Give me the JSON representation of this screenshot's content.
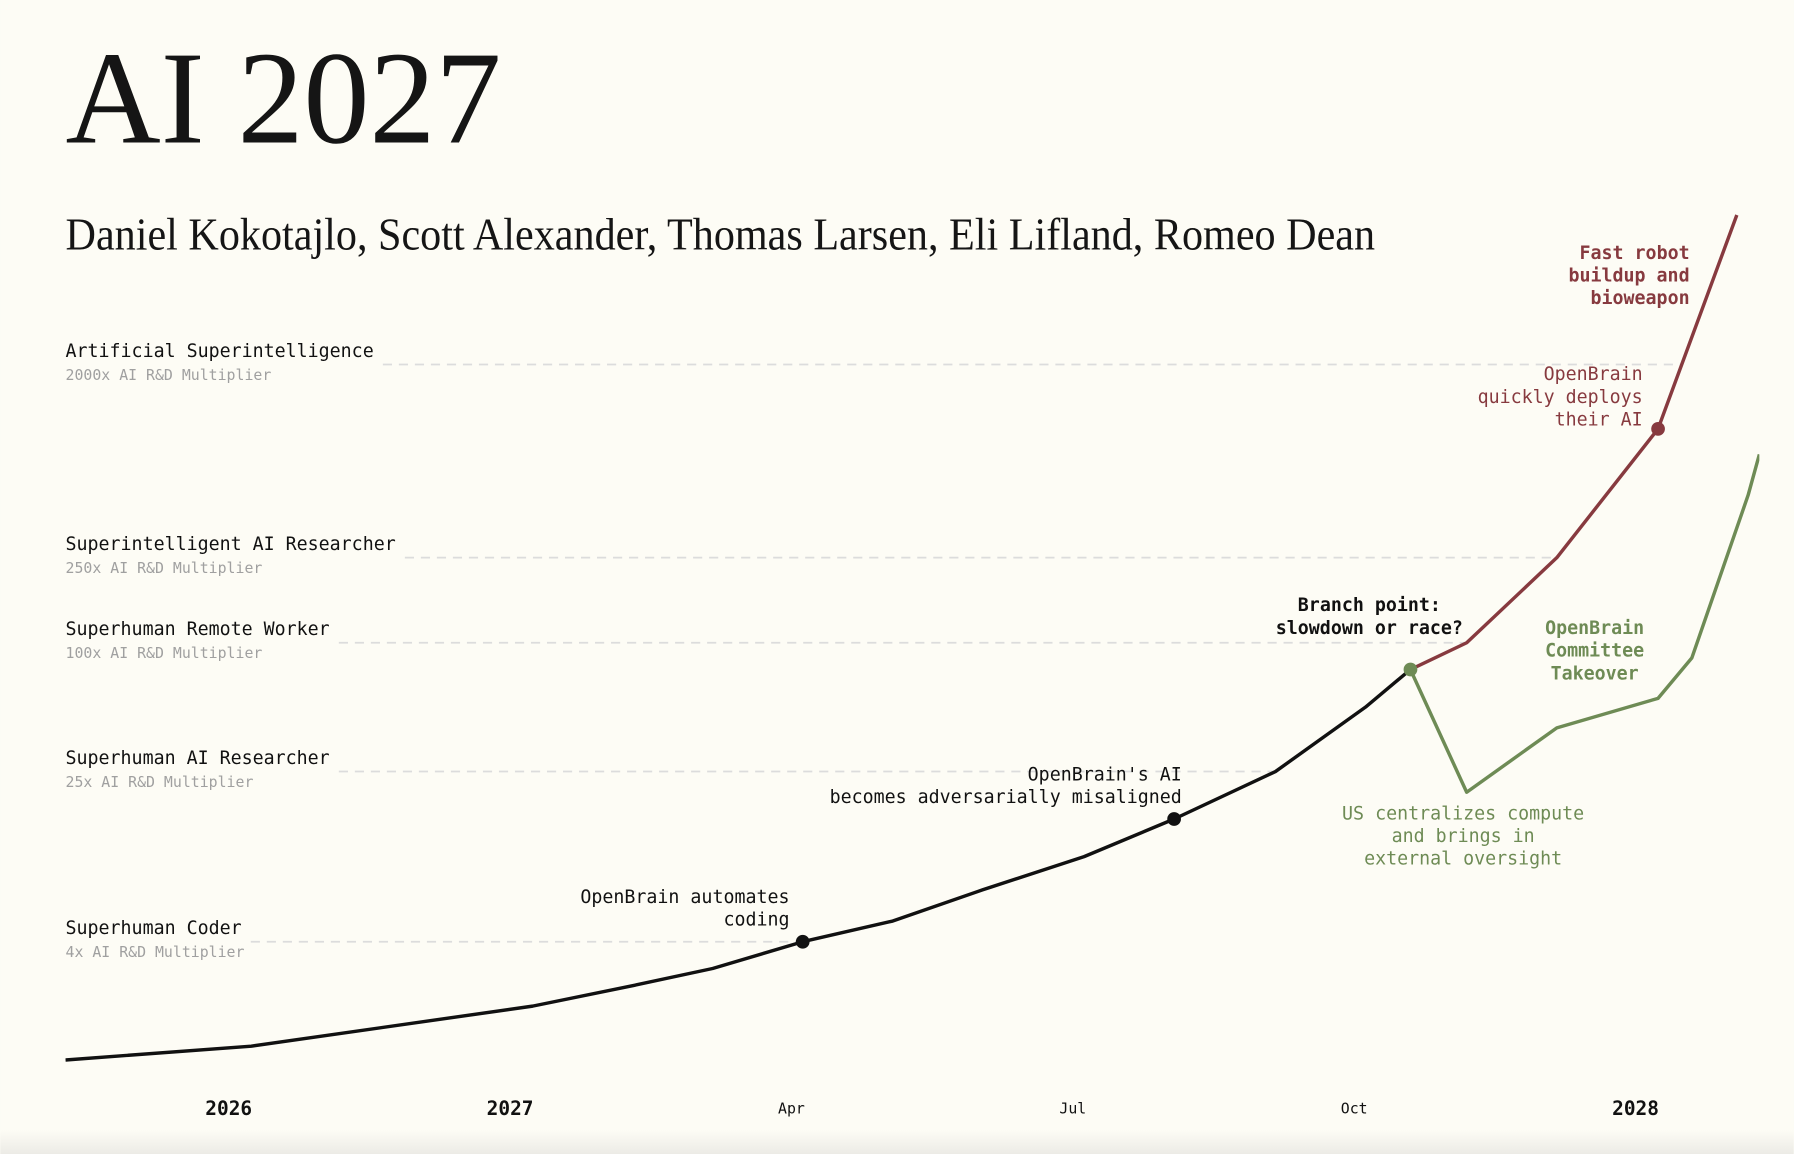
{
  "chart_data": {
    "type": "line",
    "title": "AI 2027",
    "subtitle": "Daniel Kokotajlo, Scott Alexander, Thomas Larsen, Eli Lifland, Romeo Dean",
    "ylog": true,
    "ylim": [
      1,
      10000
    ],
    "yticks": [
      {
        "value": 4,
        "label": "Superhuman Coder",
        "note": "4x AI R&D Multiplier"
      },
      {
        "value": 25,
        "label": "Superhuman AI Researcher",
        "note": "25x AI R&D Multiplier"
      },
      {
        "value": 100,
        "label": "Superhuman Remote Worker",
        "note": "100x AI R&D Multiplier"
      },
      {
        "value": 250,
        "label": "Superintelligent AI Researcher",
        "note": "250x AI R&D Multiplier"
      },
      {
        "value": 2000,
        "label": "Artificial Superintelligence",
        "note": "2000x AI R&D Multiplier"
      }
    ],
    "xlim": [
      2025.42,
      2028.11
    ],
    "xticks": [
      2026,
      2027,
      {
        "value": 2027.25,
        "label": "Apr"
      },
      {
        "value": 2027.5,
        "label": "Jul"
      },
      {
        "value": 2027.75,
        "label": "Oct"
      },
      2028
    ],
    "series": [
      {
        "color": "#111111",
        "x": [
          2025.42,
          2026.08,
          2027.02,
          2027.11,
          2027.18,
          2027.26,
          2027.34,
          2027.42,
          2027.51,
          2027.59,
          2027.68,
          2027.76,
          2027.8
        ],
        "values": [
          1.12,
          1.3,
          2,
          2.5,
          3,
          4,
          5,
          7,
          10,
          15,
          25,
          50,
          75
        ]
      },
      {
        "color": "#873a3f",
        "x": [
          2027.8,
          2027.85,
          2027.93,
          2028.02,
          2028.09
        ],
        "values": [
          75,
          100,
          250,
          1000,
          10000
        ]
      },
      {
        "color": "#6e8b55",
        "x": [
          2027.8,
          2027.85,
          2027.93,
          2028.02,
          2028.05,
          2028.1,
          2028.11
        ],
        "values": [
          75,
          20,
          40,
          55,
          85,
          490,
          760
        ]
      }
    ],
    "markers": [
      {
        "x": 2027.26,
        "y": 4,
        "color": "#111111"
      },
      {
        "x": 2027.59,
        "y": 15,
        "color": "#111111"
      },
      {
        "x": 2027.8,
        "y": 75,
        "color": "#6e8b55"
      },
      {
        "x": 2028.02,
        "y": 1000,
        "color": "#873a3f"
      }
    ],
    "annotations": [
      {
        "lines": [
          "OpenBrain automates",
          "coding"
        ],
        "color": "#111111",
        "bold": false
      },
      {
        "lines": [
          "OpenBrain's AI",
          "becomes adversarially misaligned"
        ],
        "color": "#111111",
        "bold": false
      },
      {
        "lines": [
          "Branch point:",
          "slowdown or race?"
        ],
        "color": "#111111",
        "bold": true
      },
      {
        "lines": [
          "Fast robot",
          "buildup and",
          "bioweapon"
        ],
        "color": "#873a3f",
        "bold": true
      },
      {
        "lines": [
          "OpenBrain",
          "quickly deploys",
          "their AI"
        ],
        "color": "#873a3f",
        "bold": false
      },
      {
        "lines": [
          "OpenBrain",
          "Committee",
          "Takeover"
        ],
        "color": "#6e8b55",
        "bold": true
      },
      {
        "lines": [
          "US centralizes compute",
          "and brings in",
          "external oversight"
        ],
        "color": "#6e8b55",
        "bold": false
      }
    ]
  }
}
